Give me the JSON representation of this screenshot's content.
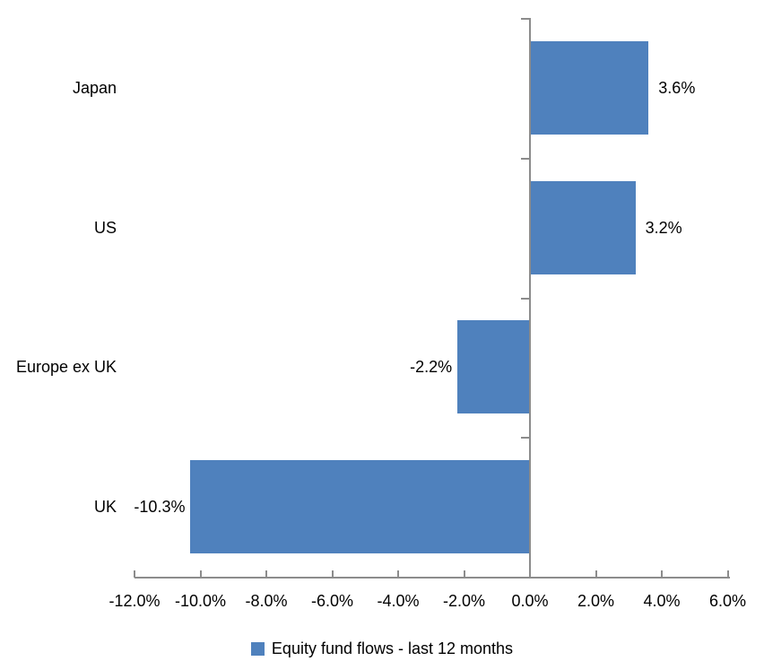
{
  "chart_data": {
    "type": "bar",
    "orientation": "horizontal",
    "title": "",
    "xlabel": "",
    "ylabel": "",
    "grid": false,
    "categories": [
      "Japan",
      "US",
      "Europe ex UK",
      "UK"
    ],
    "series": [
      {
        "name": "Equity fund flows - last 12 months",
        "values": [
          3.6,
          3.2,
          -2.2,
          -10.3
        ],
        "value_labels": [
          "3.6%",
          "3.2%",
          "-2.2%",
          "-10.3%"
        ]
      }
    ],
    "x_axis": {
      "range": [
        -12,
        6
      ],
      "tick_values": [
        -12,
        -10,
        -8,
        -6,
        -4,
        -2,
        0,
        2,
        4,
        6
      ],
      "tick_labels": [
        "-12.0%",
        "-10.0%",
        "-8.0%",
        "-6.0%",
        "-4.0%",
        "-2.0%",
        "0.0%",
        "2.0%",
        "4.0%",
        "6.0%"
      ]
    },
    "legend": {
      "position": "bottom",
      "label": "Equity fund flows - last 12 months"
    },
    "colors": {
      "bar": "#4F81BD",
      "axis": "#8C8C8C",
      "text": "#000000",
      "background": "#FFFFFF"
    }
  }
}
